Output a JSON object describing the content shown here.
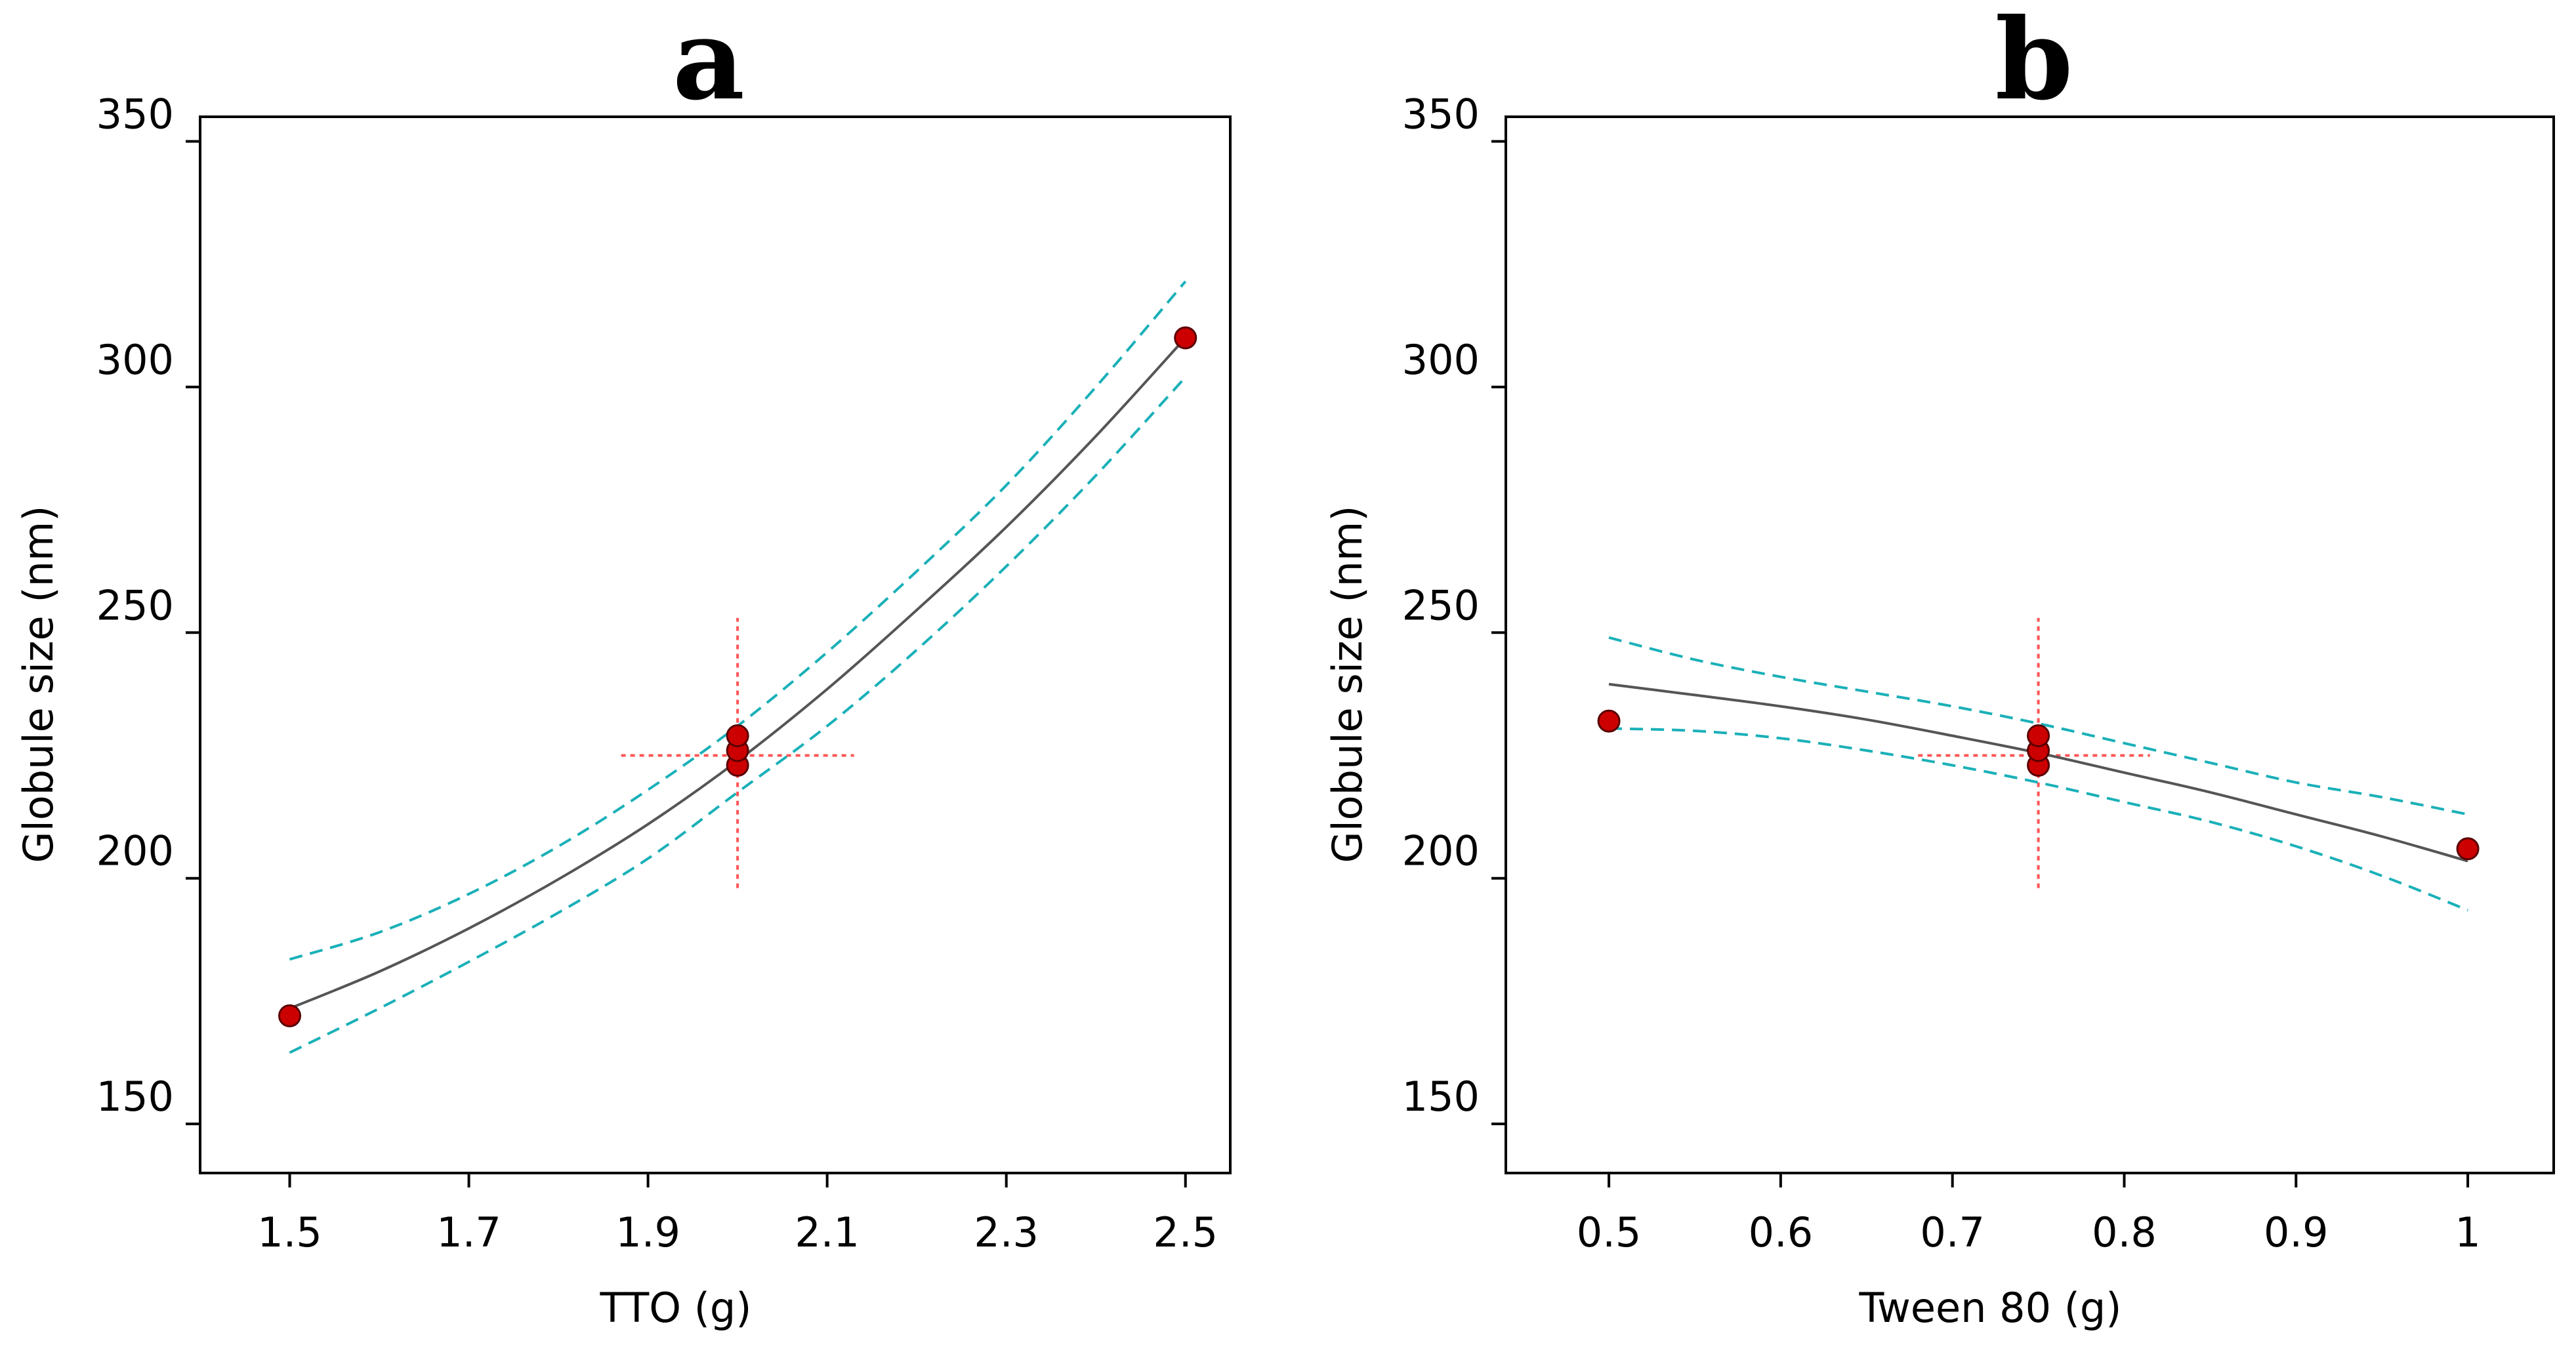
{
  "chart_data": [
    {
      "type": "line",
      "panel_label": "a",
      "xlabel": "TTO (g)",
      "ylabel": "Globule size (nm)",
      "xlim": [
        1.4,
        2.55
      ],
      "ylim": [
        140,
        355
      ],
      "x_ticks": [
        1.5,
        1.7,
        1.9,
        2.1,
        2.3,
        2.5
      ],
      "x_tick_labels": [
        "1.5",
        "1.7",
        "1.9",
        "2.1",
        "2.3",
        "2.5"
      ],
      "y_ticks": [
        150,
        200,
        250,
        300,
        350
      ],
      "y_tick_labels": [
        "150",
        "200",
        "250",
        "300",
        "350"
      ],
      "fit": {
        "x": [
          1.5,
          1.6,
          1.7,
          1.8,
          1.9,
          2.0,
          2.1,
          2.2,
          2.3,
          2.4,
          2.5
        ],
        "y": [
          173.5,
          181.0,
          189.8,
          199.8,
          211.0,
          223.9,
          238.5,
          254.6,
          271.5,
          290.0,
          310.0
        ]
      },
      "ci_upper": {
        "x": [
          1.5,
          1.6,
          1.7,
          1.8,
          1.9,
          2.0,
          2.1,
          2.2,
          2.3,
          2.4,
          2.5
        ],
        "y": [
          183.5,
          189.0,
          196.8,
          206.5,
          218.0,
          231.0,
          246.0,
          262.5,
          280.0,
          300.0,
          321.5
        ]
      },
      "ci_lower": {
        "x": [
          1.5,
          1.6,
          1.7,
          1.8,
          1.9,
          2.0,
          2.1,
          2.2,
          2.3,
          2.4,
          2.5
        ],
        "y": [
          164.5,
          173.5,
          183.0,
          193.0,
          204.0,
          217.5,
          231.0,
          246.5,
          263.5,
          282.0,
          302.0
        ]
      },
      "points": [
        {
          "x": 1.5,
          "y": 172
        },
        {
          "x": 2.0,
          "y": 223
        },
        {
          "x": 2.0,
          "y": 226
        },
        {
          "x": 2.0,
          "y": 229
        },
        {
          "x": 2.5,
          "y": 310
        }
      ],
      "crosshair": {
        "x": 2.0,
        "y": 225,
        "x_range": [
          1.87,
          2.13
        ],
        "y_range": [
          198,
          253
        ]
      },
      "colors": {
        "fit": "#555555",
        "ci": "#1ab0b8",
        "point": "#cc0000",
        "crosshair": "#ff5555"
      }
    },
    {
      "type": "line",
      "panel_label": "b",
      "xlabel": "Tween 80 (g)",
      "ylabel": "Globule size (nm)",
      "xlim": [
        0.44,
        1.05
      ],
      "ylim": [
        140,
        355
      ],
      "x_ticks": [
        0.5,
        0.6,
        0.7,
        0.8,
        0.9,
        1.0
      ],
      "x_tick_labels": [
        "0.5",
        "0.6",
        "0.7",
        "0.8",
        "0.9",
        "1"
      ],
      "y_ticks": [
        150,
        200,
        250,
        300,
        350
      ],
      "y_tick_labels": [
        "150",
        "200",
        "250",
        "300",
        "350"
      ],
      "fit": {
        "x": [
          0.5,
          0.55,
          0.6,
          0.65,
          0.7,
          0.75,
          0.8,
          0.85,
          0.9,
          0.95,
          1.0
        ],
        "y": [
          239.5,
          237.3,
          235.0,
          232.3,
          229.0,
          225.5,
          221.5,
          217.5,
          213.0,
          208.5,
          203.5
        ]
      },
      "ci_upper": {
        "x": [
          0.5,
          0.55,
          0.6,
          0.65,
          0.7,
          0.75,
          0.8,
          0.85,
          0.9,
          0.95,
          1.0
        ],
        "y": [
          249.0,
          244.5,
          241.0,
          238.0,
          235.0,
          231.5,
          227.5,
          223.5,
          219.5,
          216.5,
          213.0
        ]
      },
      "ci_lower": {
        "x": [
          0.5,
          0.55,
          0.6,
          0.65,
          0.7,
          0.75,
          0.8,
          0.85,
          0.9,
          0.95,
          1.0
        ],
        "y": [
          230.5,
          230.0,
          228.5,
          226.0,
          223.0,
          219.5,
          215.5,
          211.5,
          206.5,
          200.5,
          193.5
        ]
      },
      "points": [
        {
          "x": 0.5,
          "y": 232
        },
        {
          "x": 0.75,
          "y": 223
        },
        {
          "x": 0.75,
          "y": 226
        },
        {
          "x": 0.75,
          "y": 229
        },
        {
          "x": 1.0,
          "y": 206
        }
      ],
      "crosshair": {
        "x": 0.75,
        "y": 225,
        "x_range": [
          0.68,
          0.815
        ],
        "y_range": [
          198,
          253
        ]
      },
      "colors": {
        "fit": "#555555",
        "ci": "#1ab0b8",
        "point": "#cc0000",
        "crosshair": "#ff5555"
      }
    }
  ]
}
